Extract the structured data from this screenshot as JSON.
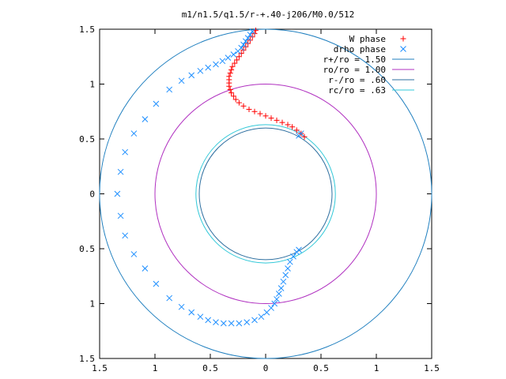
{
  "chart_data": {
    "type": "scatter",
    "title": "m1/n1.5/q1.5/r-+.40-j206/M0.0/512",
    "xlabel": "",
    "ylabel": "",
    "xlim": [
      -1.5,
      1.5
    ],
    "ylim": [
      -1.5,
      1.5
    ],
    "grid": false,
    "legend_position": "top-right",
    "x_ticks": [
      {
        "value": -1.5,
        "label": "1.5"
      },
      {
        "value": -1.0,
        "label": "1"
      },
      {
        "value": -0.5,
        "label": "0.5"
      },
      {
        "value": 0.0,
        "label": "0"
      },
      {
        "value": 0.5,
        "label": "0.5"
      },
      {
        "value": 1.0,
        "label": "1"
      },
      {
        "value": 1.5,
        "label": "1.5"
      }
    ],
    "y_ticks": [
      {
        "value": 1.5,
        "label": "1.5"
      },
      {
        "value": 1.0,
        "label": "1"
      },
      {
        "value": 0.5,
        "label": "0.5"
      },
      {
        "value": 0.0,
        "label": "0"
      },
      {
        "value": -0.5,
        "label": "0.5"
      },
      {
        "value": -1.0,
        "label": "1"
      },
      {
        "value": -1.5,
        "label": "1.5"
      }
    ],
    "circles": [
      {
        "name": "r+/ro = 1.50",
        "radius": 1.5,
        "color": "#1f7fbf"
      },
      {
        "name": "ro/ro = 1.00",
        "radius": 1.0,
        "color": "#b030c0"
      },
      {
        "name": "r-/ro = .60",
        "radius": 0.6,
        "color": "#2e6fa0"
      },
      {
        "name": "rc/ro = .63",
        "radius": 0.63,
        "color": "#30c8d8"
      }
    ],
    "series": [
      {
        "name": "W phase",
        "marker": "+",
        "color": "#ff0000",
        "points": [
          [
            0.35,
            0.52
          ],
          [
            0.32,
            0.55
          ],
          [
            0.28,
            0.58
          ],
          [
            0.24,
            0.61
          ],
          [
            0.2,
            0.63
          ],
          [
            0.15,
            0.65
          ],
          [
            0.1,
            0.67
          ],
          [
            0.05,
            0.69
          ],
          [
            0.0,
            0.71
          ],
          [
            -0.05,
            0.73
          ],
          [
            -0.1,
            0.75
          ],
          [
            -0.15,
            0.77
          ],
          [
            -0.2,
            0.8
          ],
          [
            -0.24,
            0.83
          ],
          [
            -0.27,
            0.86
          ],
          [
            -0.29,
            0.89
          ],
          [
            -0.31,
            0.92
          ],
          [
            -0.32,
            0.95
          ],
          [
            -0.33,
            0.98
          ],
          [
            -0.33,
            1.01
          ],
          [
            -0.33,
            1.04
          ],
          [
            -0.33,
            1.07
          ],
          [
            -0.32,
            1.1
          ],
          [
            -0.31,
            1.13
          ],
          [
            -0.3,
            1.16
          ],
          [
            -0.28,
            1.19
          ],
          [
            -0.26,
            1.22
          ],
          [
            -0.24,
            1.25
          ],
          [
            -0.22,
            1.28
          ],
          [
            -0.2,
            1.31
          ],
          [
            -0.18,
            1.34
          ],
          [
            -0.16,
            1.37
          ],
          [
            -0.14,
            1.4
          ],
          [
            -0.12,
            1.43
          ],
          [
            -0.1,
            1.46
          ],
          [
            -0.09,
            1.49
          ]
        ]
      },
      {
        "name": "drho phase",
        "marker": "x",
        "color": "#1e8fff",
        "points": [
          [
            0.3,
            0.53
          ],
          [
            0.32,
            0.55
          ],
          [
            -0.12,
            1.48
          ],
          [
            -0.14,
            1.45
          ],
          [
            -0.16,
            1.42
          ],
          [
            -0.18,
            1.39
          ],
          [
            -0.2,
            1.36
          ],
          [
            -0.22,
            1.33
          ],
          [
            -0.25,
            1.3
          ],
          [
            -0.29,
            1.27
          ],
          [
            -0.34,
            1.24
          ],
          [
            -0.39,
            1.21
          ],
          [
            -0.45,
            1.18
          ],
          [
            -0.52,
            1.15
          ],
          [
            -0.59,
            1.12
          ],
          [
            -0.67,
            1.08
          ],
          [
            -0.76,
            1.03
          ],
          [
            -0.87,
            0.95
          ],
          [
            -0.99,
            0.82
          ],
          [
            -1.09,
            0.68
          ],
          [
            -1.19,
            0.55
          ],
          [
            -1.27,
            0.38
          ],
          [
            -1.31,
            0.2
          ],
          [
            -1.34,
            0.0
          ],
          [
            -1.31,
            -0.2
          ],
          [
            -1.27,
            -0.38
          ],
          [
            -1.19,
            -0.55
          ],
          [
            -1.09,
            -0.68
          ],
          [
            -0.99,
            -0.82
          ],
          [
            -0.87,
            -0.95
          ],
          [
            -0.76,
            -1.03
          ],
          [
            -0.67,
            -1.08
          ],
          [
            -0.59,
            -1.12
          ],
          [
            -0.52,
            -1.15
          ],
          [
            -0.45,
            -1.17
          ],
          [
            -0.38,
            -1.18
          ],
          [
            -0.31,
            -1.18
          ],
          [
            -0.24,
            -1.18
          ],
          [
            -0.17,
            -1.17
          ],
          [
            -0.1,
            -1.15
          ],
          [
            -0.04,
            -1.12
          ],
          [
            0.01,
            -1.08
          ],
          [
            0.05,
            -1.04
          ],
          [
            0.08,
            -1.0
          ],
          [
            0.1,
            -0.96
          ],
          [
            0.12,
            -0.91
          ],
          [
            0.14,
            -0.86
          ],
          [
            0.16,
            -0.8
          ],
          [
            0.18,
            -0.74
          ],
          [
            0.2,
            -0.68
          ],
          [
            0.22,
            -0.62
          ],
          [
            0.25,
            -0.57
          ],
          [
            0.28,
            -0.53
          ],
          [
            0.3,
            -0.51
          ]
        ]
      }
    ]
  }
}
